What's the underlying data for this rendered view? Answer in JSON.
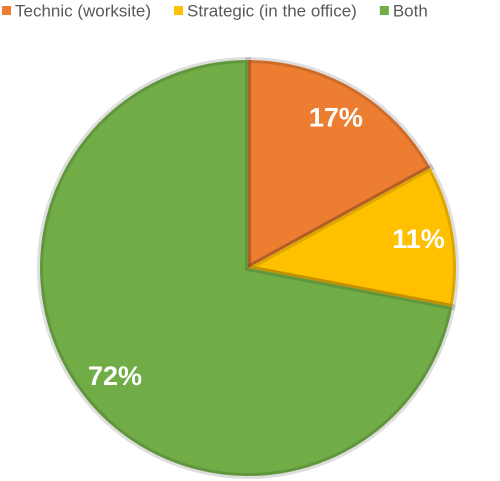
{
  "chart_data": {
    "type": "pie",
    "categories": [
      "Technic (worksite)",
      "Strategic (in the office)",
      "Both"
    ],
    "values": [
      17,
      11,
      72
    ],
    "value_labels": [
      "17%",
      "11%",
      "72%"
    ],
    "colors": [
      "#ed7d31",
      "#ffc000",
      "#70ad47"
    ],
    "legend": "top"
  }
}
